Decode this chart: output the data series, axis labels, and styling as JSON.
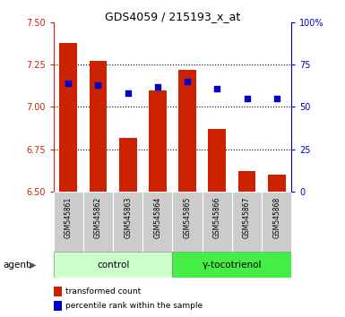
{
  "title": "GDS4059 / 215193_x_at",
  "categories": [
    "GSM545861",
    "GSM545862",
    "GSM545863",
    "GSM545864",
    "GSM545865",
    "GSM545866",
    "GSM545867",
    "GSM545868"
  ],
  "bar_values": [
    7.38,
    7.27,
    6.82,
    7.1,
    7.22,
    6.87,
    6.62,
    6.6
  ],
  "dot_values_left": [
    7.14,
    7.13,
    7.08,
    7.12,
    7.15,
    7.11,
    7.05,
    7.05
  ],
  "bar_base": 6.5,
  "ylim_left": [
    6.5,
    7.5
  ],
  "ylim_right": [
    0,
    100
  ],
  "yticks_left": [
    6.5,
    6.75,
    7.0,
    7.25,
    7.5
  ],
  "yticks_right": [
    0,
    25,
    50,
    75,
    100
  ],
  "ytick_labels_right": [
    "0",
    "25",
    "50",
    "75",
    "100%"
  ],
  "bar_color": "#cc2200",
  "dot_color": "#0000cc",
  "grid_color": "#000000",
  "control_label": "control",
  "treatment_label": "γ-tocotrienol",
  "agent_label": "agent",
  "legend_bar_label": "transformed count",
  "legend_dot_label": "percentile rank within the sample",
  "control_color": "#ccffcc",
  "treatment_color": "#44ee44",
  "xticklabel_bg": "#cccccc",
  "n_control": 4,
  "n_treatment": 4
}
